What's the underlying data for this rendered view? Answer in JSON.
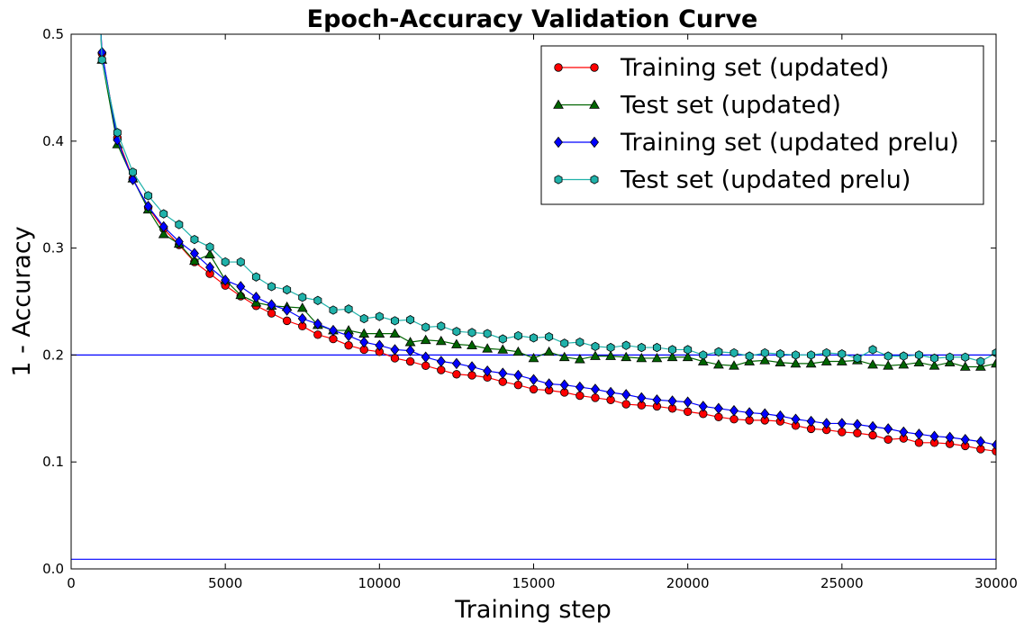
{
  "chart_data": {
    "type": "line",
    "title": "Epoch-Accuracy Validation Curve",
    "xlabel": "Training step",
    "ylabel": "1 - Accuracy",
    "xlim": [
      0,
      30000
    ],
    "ylim": [
      0,
      0.5
    ],
    "xticks": [
      "0",
      "5000",
      "10000",
      "15000",
      "20000",
      "25000",
      "30000"
    ],
    "yticks": [
      "0.0",
      "0.1",
      "0.2",
      "0.3",
      "0.4",
      "0.5"
    ],
    "grid": false,
    "legend_position": "top-right",
    "hlines": [
      {
        "y": 0.2,
        "color": "#0000ff"
      },
      {
        "y": 0.009,
        "color": "#0000ff"
      }
    ],
    "x": [
      1000,
      1500,
      2000,
      2500,
      3000,
      3500,
      4000,
      4500,
      5000,
      5500,
      6000,
      6500,
      7000,
      7500,
      8000,
      8500,
      9000,
      9500,
      10000,
      10500,
      11000,
      11500,
      12000,
      12500,
      13000,
      13500,
      14000,
      14500,
      15000,
      15500,
      16000,
      16500,
      17000,
      17500,
      18000,
      18500,
      19000,
      19500,
      20000,
      20500,
      21000,
      21500,
      22000,
      22500,
      23000,
      23500,
      24000,
      24500,
      25000,
      25500,
      26000,
      26500,
      27000,
      27500,
      28000,
      28500,
      29000,
      29500,
      30000
    ],
    "series": [
      {
        "name": "Training set (updated)",
        "color": "#ff0000",
        "marker": "circle",
        "start_y": 0.51,
        "values": [
          0.482,
          0.403,
          0.365,
          0.338,
          0.318,
          0.303,
          0.287,
          0.276,
          0.265,
          0.255,
          0.246,
          0.239,
          0.232,
          0.227,
          0.219,
          0.215,
          0.209,
          0.205,
          0.203,
          0.197,
          0.194,
          0.19,
          0.186,
          0.182,
          0.181,
          0.179,
          0.175,
          0.172,
          0.168,
          0.167,
          0.165,
          0.162,
          0.16,
          0.158,
          0.154,
          0.153,
          0.152,
          0.15,
          0.147,
          0.145,
          0.142,
          0.14,
          0.139,
          0.139,
          0.138,
          0.134,
          0.131,
          0.13,
          0.128,
          0.127,
          0.125,
          0.121,
          0.122,
          0.118,
          0.118,
          0.117,
          0.115,
          0.112,
          0.11
        ]
      },
      {
        "name": "Test set (updated)",
        "color": "#006400",
        "marker": "triangle",
        "start_y": 0.51,
        "values": [
          0.476,
          0.397,
          0.365,
          0.336,
          0.313,
          0.304,
          0.288,
          0.294,
          0.27,
          0.256,
          0.249,
          0.246,
          0.245,
          0.244,
          0.228,
          0.223,
          0.223,
          0.22,
          0.22,
          0.22,
          0.212,
          0.214,
          0.213,
          0.21,
          0.209,
          0.206,
          0.205,
          0.203,
          0.197,
          0.203,
          0.198,
          0.196,
          0.199,
          0.199,
          0.198,
          0.197,
          0.197,
          0.198,
          0.198,
          0.194,
          0.191,
          0.19,
          0.194,
          0.195,
          0.193,
          0.192,
          0.192,
          0.194,
          0.194,
          0.195,
          0.191,
          0.19,
          0.191,
          0.193,
          0.19,
          0.193,
          0.189,
          0.189,
          0.192
        ]
      },
      {
        "name": "Training set (updated prelu)",
        "color": "#0000ff",
        "marker": "diamond",
        "start_y": 0.51,
        "values": [
          0.483,
          0.401,
          0.364,
          0.339,
          0.32,
          0.306,
          0.295,
          0.282,
          0.27,
          0.264,
          0.254,
          0.247,
          0.242,
          0.234,
          0.229,
          0.223,
          0.218,
          0.212,
          0.209,
          0.205,
          0.204,
          0.198,
          0.194,
          0.192,
          0.189,
          0.185,
          0.183,
          0.181,
          0.177,
          0.173,
          0.172,
          0.17,
          0.168,
          0.165,
          0.163,
          0.16,
          0.158,
          0.157,
          0.156,
          0.152,
          0.15,
          0.148,
          0.146,
          0.145,
          0.143,
          0.14,
          0.138,
          0.136,
          0.136,
          0.135,
          0.133,
          0.131,
          0.128,
          0.126,
          0.124,
          0.123,
          0.121,
          0.119,
          0.116
        ]
      },
      {
        "name": "Test set (updated prelu)",
        "color": "#20b2aa",
        "marker": "hexagon",
        "start_y": 0.51,
        "values": [
          0.476,
          0.408,
          0.371,
          0.349,
          0.332,
          0.322,
          0.308,
          0.301,
          0.287,
          0.287,
          0.273,
          0.264,
          0.261,
          0.254,
          0.251,
          0.242,
          0.243,
          0.234,
          0.236,
          0.232,
          0.233,
          0.226,
          0.227,
          0.222,
          0.221,
          0.22,
          0.215,
          0.218,
          0.216,
          0.217,
          0.211,
          0.212,
          0.208,
          0.207,
          0.209,
          0.207,
          0.207,
          0.205,
          0.205,
          0.2,
          0.203,
          0.202,
          0.199,
          0.202,
          0.201,
          0.2,
          0.2,
          0.202,
          0.201,
          0.197,
          0.205,
          0.199,
          0.199,
          0.2,
          0.197,
          0.198,
          0.198,
          0.194,
          0.202
        ]
      }
    ]
  }
}
